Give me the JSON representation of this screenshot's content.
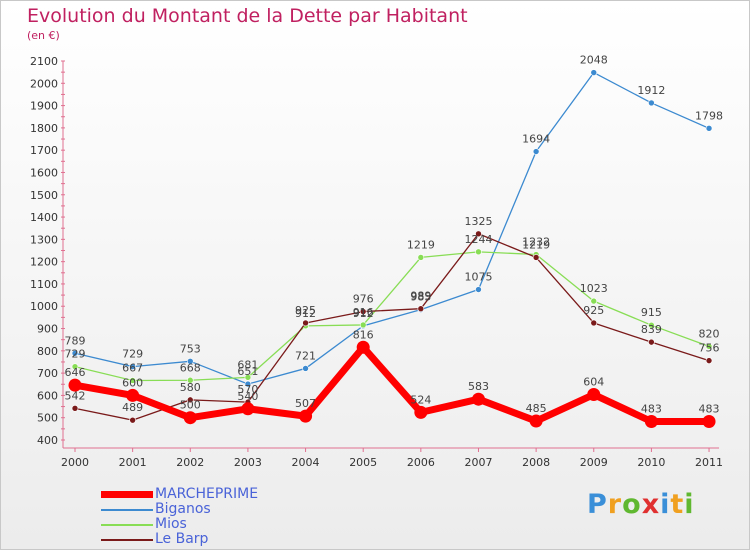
{
  "chart_data": {
    "type": "line",
    "title": "Evolution du Montant de la Dette par Habitant",
    "subtitle": "(en €)",
    "x": [
      "2000",
      "2001",
      "2002",
      "2003",
      "2004",
      "2005",
      "2006",
      "2007",
      "2008",
      "2009",
      "2010",
      "2011"
    ],
    "ylim": [
      400,
      2100
    ],
    "yticks": [
      400,
      500,
      600,
      700,
      800,
      900,
      1000,
      1100,
      1200,
      1300,
      1400,
      1500,
      1600,
      1700,
      1800,
      1900,
      2000,
      2100
    ],
    "grid": false,
    "legend_position": "bottom-left",
    "series": [
      {
        "name": "MARCHEPRIME",
        "color": "#ff0000",
        "values": [
          646,
          600,
          500,
          540,
          507,
          816,
          524,
          583,
          485,
          604,
          483,
          483
        ]
      },
      {
        "name": "Biganos",
        "color": "#3c8ad0",
        "values": [
          789,
          729,
          753,
          651,
          721,
          912,
          985,
          1075,
          1694,
          2048,
          1912,
          1798
        ]
      },
      {
        "name": "Mios",
        "color": "#88dd55",
        "values": [
          729,
          667,
          668,
          681,
          912,
          916,
          1219,
          1244,
          1232,
          1023,
          915,
          820
        ]
      },
      {
        "name": "Le Barp",
        "color": "#7a1a1a",
        "values": [
          542,
          489,
          580,
          570,
          925,
          976,
          989,
          1325,
          1219,
          925,
          839,
          756
        ]
      }
    ]
  },
  "logo": {
    "letters": [
      "P",
      "r",
      "o",
      "x",
      "i",
      "t",
      "i"
    ],
    "colors": [
      "#3a8fd8",
      "#f0a020",
      "#60b830",
      "#e03030",
      "#3a8fd8",
      "#f0a020",
      "#60b830"
    ]
  }
}
